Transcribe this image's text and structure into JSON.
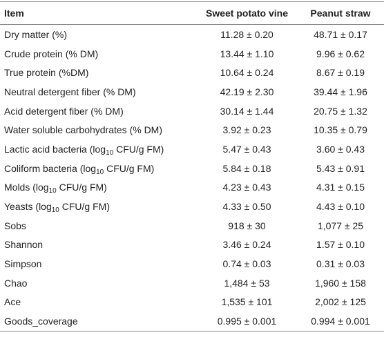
{
  "table": {
    "header": [
      "Item",
      "Sweet potato vine",
      "Peanut straw"
    ],
    "rows": [
      [
        "Dry matter (%)",
        "11.28 ± 0.20",
        "48.71 ± 0.17"
      ],
      [
        "Crude protein (% DM)",
        "13.44 ± 1.10",
        "9.96 ± 0.62"
      ],
      [
        "True protein (%DM)",
        "10.64 ± 0.24",
        "8.67 ± 0.19"
      ],
      [
        "Neutral detergent fiber (% DM)",
        "42.19 ± 2.30",
        "39.44 ± 1.96"
      ],
      [
        "Acid detergent fiber (% DM)",
        "30.14 ± 1.44",
        "20.75 ± 1.32"
      ],
      [
        "Water soluble carbohydrates (% DM)",
        "3.92 ± 0.23",
        "10.35 ± 0.79"
      ],
      [
        {
          "text": "Lactic acid bacteria (log",
          "sub": "10",
          "tail": " CFU/g FM)"
        },
        "5.47 ± 0.43",
        "3.60 ± 0.43"
      ],
      [
        {
          "text": "Coliform bacteria (log",
          "sub": "10",
          "tail": " CFU/g FM)"
        },
        "5.84 ± 0.18",
        "5.43 ± 0.91"
      ],
      [
        {
          "text": "Molds (log",
          "sub": "10",
          "tail": " CFU/g FM)"
        },
        "4.23 ± 0.43",
        "4.31 ± 0.15"
      ],
      [
        {
          "text": "Yeasts (log",
          "sub": "10",
          "tail": " CFU/g FM)"
        },
        "4.33 ± 0.50",
        "4.43 ± 0.10"
      ],
      [
        "Sobs",
        "918 ± 30",
        "1,077 ± 25"
      ],
      [
        "Shannon",
        "3.46 ± 0.24",
        "1.57 ± 0.10"
      ],
      [
        "Simpson",
        "0.74 ± 0.03",
        "0.31 ± 0.03"
      ],
      [
        "Chao",
        "1,484 ± 53",
        "1,960 ± 158"
      ],
      [
        "Ace",
        "1,535 ± 101",
        "2,002 ± 125"
      ],
      [
        "Goods_coverage",
        "0.995 ± 0.001",
        "0.994 ± 0.001"
      ]
    ]
  }
}
